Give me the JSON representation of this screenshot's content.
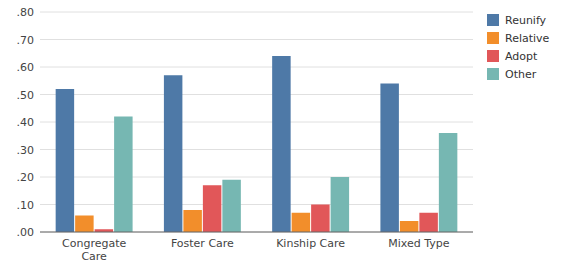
{
  "chart_data": {
    "type": "bar",
    "categories": [
      "Congregate\nCare",
      "Foster Care",
      "Kinship Care",
      "Mixed Type"
    ],
    "series": [
      {
        "name": "Reunify",
        "values": [
          0.52,
          0.57,
          0.64,
          0.54
        ]
      },
      {
        "name": "Relative",
        "values": [
          0.06,
          0.08,
          0.07,
          0.04
        ]
      },
      {
        "name": "Adopt",
        "values": [
          0.01,
          0.17,
          0.1,
          0.07
        ]
      },
      {
        "name": "Other",
        "values": [
          0.42,
          0.19,
          0.2,
          0.36
        ]
      }
    ],
    "ylim": [
      0.0,
      0.8
    ],
    "yticks": [
      {
        "value": 0.0,
        "label": ".00"
      },
      {
        "value": 0.1,
        "label": ".10"
      },
      {
        "value": 0.2,
        "label": ".20"
      },
      {
        "value": 0.3,
        "label": ".30"
      },
      {
        "value": 0.4,
        "label": ".40"
      },
      {
        "value": 0.5,
        "label": ".50"
      },
      {
        "value": 0.6,
        "label": ".60"
      },
      {
        "value": 0.7,
        "label": ".70"
      },
      {
        "value": 0.8,
        "label": ".80"
      }
    ],
    "grid": true,
    "legend": "upper right"
  }
}
